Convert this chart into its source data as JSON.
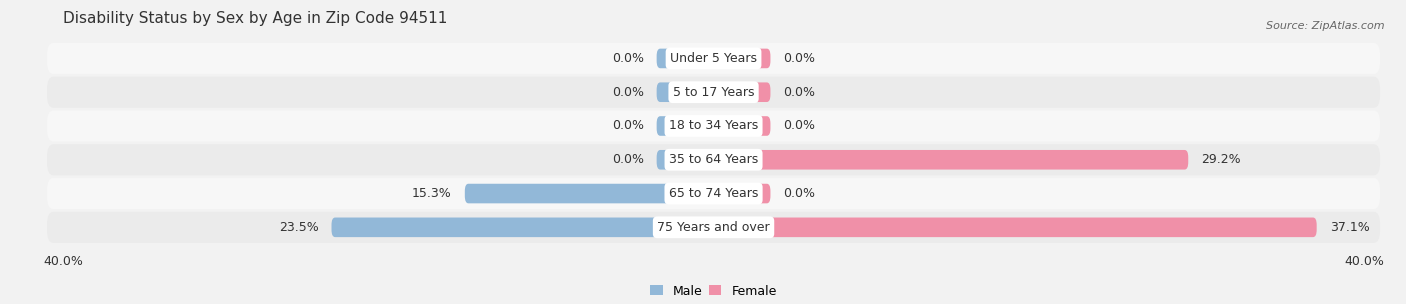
{
  "title": "Disability Status by Sex by Age in Zip Code 94511",
  "source": "Source: ZipAtlas.com",
  "categories": [
    "Under 5 Years",
    "5 to 17 Years",
    "18 to 34 Years",
    "35 to 64 Years",
    "65 to 74 Years",
    "75 Years and over"
  ],
  "male_values": [
    0.0,
    0.0,
    0.0,
    0.0,
    15.3,
    23.5
  ],
  "female_values": [
    0.0,
    0.0,
    0.0,
    29.2,
    0.0,
    37.1
  ],
  "male_color": "#92b8d8",
  "female_color": "#f090a8",
  "male_label": "Male",
  "female_label": "Female",
  "axis_limit": 40.0,
  "min_bar_val": 3.5,
  "bar_height": 0.58,
  "bg_color": "#f2f2f2",
  "row_colors": [
    "#f7f7f7",
    "#ebebeb",
    "#f7f7f7",
    "#ebebeb",
    "#f7f7f7",
    "#ebebeb"
  ],
  "title_fontsize": 11,
  "value_fontsize": 9,
  "category_fontsize": 9,
  "axis_label_fontsize": 9,
  "legend_fontsize": 9
}
